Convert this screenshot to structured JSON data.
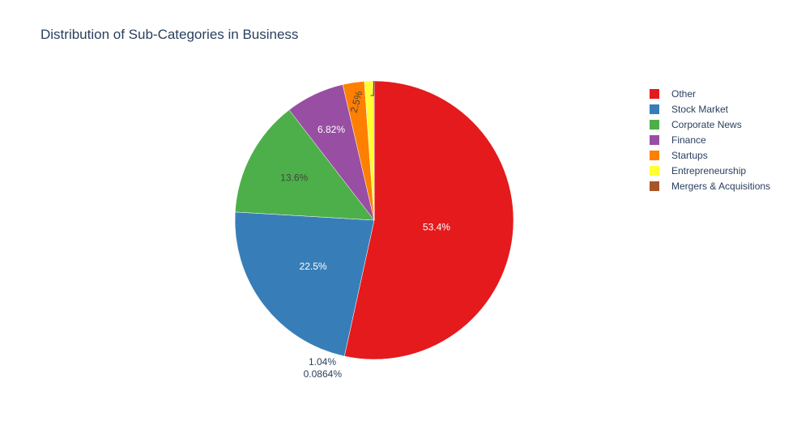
{
  "chart_data": {
    "type": "pie",
    "title": "Distribution of Sub-Categories in Business",
    "labels": [
      "Other",
      "Stock Market",
      "Corporate News",
      "Finance",
      "Startups",
      "Entrepreneurship",
      "Mergers & Acquisitions"
    ],
    "values": [
      53.4,
      22.5,
      13.6,
      6.82,
      2.5,
      1.04,
      0.0864
    ],
    "percent_labels": [
      "53.4%",
      "22.5%",
      "13.6%",
      "6.82%",
      "2.5%",
      "1.04%",
      "0.0864%"
    ],
    "colors": [
      "#e41a1c",
      "#377eb8",
      "#4daf4a",
      "#984ea3",
      "#ff7f00",
      "#ffff33",
      "#a65628"
    ],
    "direction": "clockwise",
    "start": "top",
    "legend_position": "right"
  }
}
